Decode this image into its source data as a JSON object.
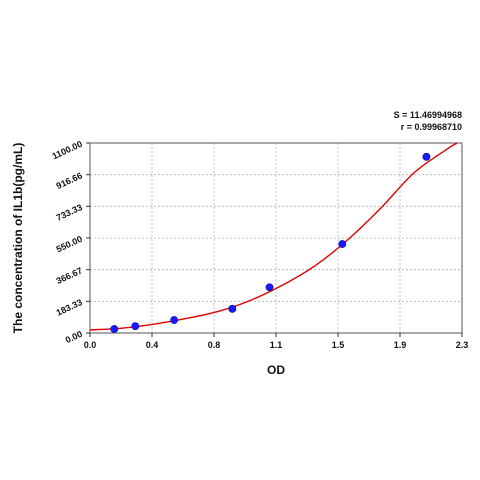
{
  "chart_data": {
    "type": "scatter",
    "xlabel": "OD",
    "ylabel": "The concentration of IL1b(pg/mL)",
    "xlim": [
      0.0,
      2.3
    ],
    "ylim": [
      0.0,
      1100.0
    ],
    "x_ticks": [
      "0.0",
      "0.4",
      "0.8",
      "1.1",
      "1.5",
      "1.9",
      "2.3"
    ],
    "y_ticks": [
      "0.00",
      "183.33",
      "366.67",
      "550.00",
      "733.33",
      "916.66",
      "1100.00"
    ],
    "grid": true,
    "colors": {
      "points": "#1a1aff",
      "curve": "#e00000",
      "grid": "#b0b0b0"
    },
    "series": [
      {
        "points": [
          {
            "x": 0.15,
            "y": 23
          },
          {
            "x": 0.28,
            "y": 40
          },
          {
            "x": 0.52,
            "y": 75
          },
          {
            "x": 0.88,
            "y": 140
          },
          {
            "x": 1.11,
            "y": 265
          },
          {
            "x": 1.56,
            "y": 515
          },
          {
            "x": 2.08,
            "y": 1020
          }
        ]
      }
    ],
    "fit_curve": {
      "x": [
        0.0,
        0.2,
        0.4,
        0.6,
        0.8,
        1.0,
        1.2,
        1.4,
        1.6,
        1.8,
        2.0,
        2.2,
        2.27
      ],
      "y": [
        18,
        28,
        52,
        85,
        127,
        192,
        282,
        395,
        545,
        725,
        925,
        1060,
        1100
      ]
    },
    "annotations": {
      "s": "S = 11.46994968",
      "r": "r = 0.99968710"
    }
  }
}
